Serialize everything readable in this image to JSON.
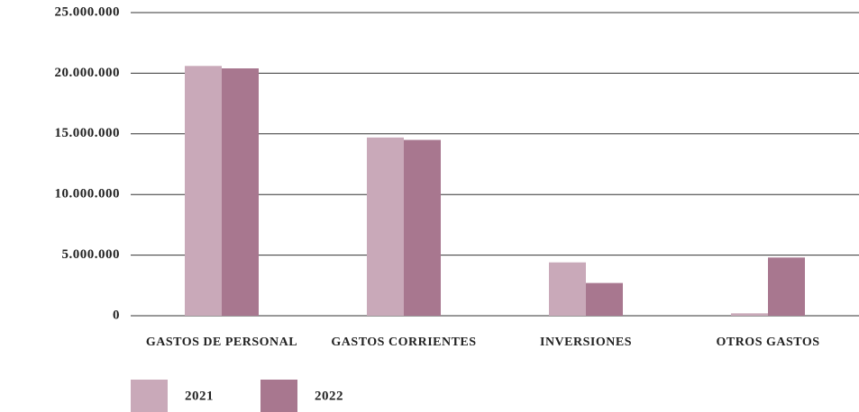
{
  "chart_data": {
    "type": "bar",
    "categories": [
      "GASTOS DE PERSONAL",
      "GASTOS CORRIENTES",
      "INVERSIONES",
      "OTROS GASTOS"
    ],
    "series": [
      {
        "name": "2021",
        "color": "#c9a9b9",
        "values": [
          20600000,
          14700000,
          4400000,
          200000
        ]
      },
      {
        "name": "2022",
        "color": "#a8778f",
        "values": [
          20400000,
          14500000,
          2700000,
          4800000
        ]
      }
    ],
    "ylim": [
      0,
      25000000
    ],
    "yticks": [
      0,
      {
        "value": 5000000,
        "label": "5.000.000"
      },
      {
        "value": 10000000,
        "label": "10.000.000"
      },
      {
        "value": 15000000,
        "label": "15.000.000"
      },
      {
        "value": 20000000,
        "label": "20.000.000"
      },
      {
        "value": 25000000,
        "label": "25.000.000"
      }
    ],
    "grid": true,
    "legend": "bottom-left"
  }
}
